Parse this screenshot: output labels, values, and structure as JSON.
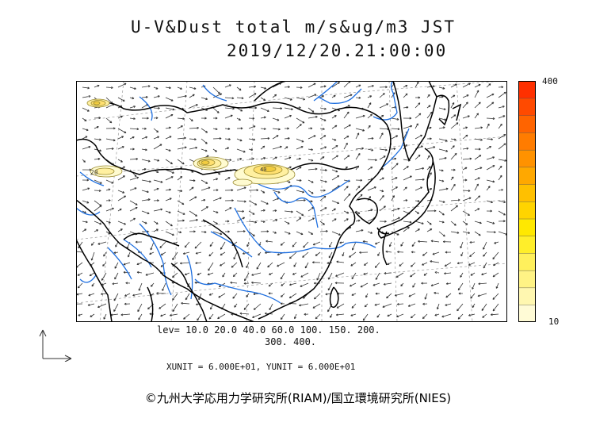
{
  "header": {
    "title": "U-V&Dust total m/s&ug/m3 JST",
    "datetime": "2019/12/20.21:00:00"
  },
  "colorbar": {
    "max_label": "400",
    "min_label": "10",
    "colors": [
      "#fffbd6",
      "#fff7b0",
      "#fff385",
      "#fff05c",
      "#ffee2a",
      "#ffe800",
      "#ffd400",
      "#ffc000",
      "#ffa800",
      "#ff9200",
      "#ff7c00",
      "#ff6400",
      "#ff4a00",
      "#ff3000"
    ]
  },
  "legend": {
    "levels_line1": "lev= 10.0 20.0 40.0 60.0 100. 150. 200.",
    "levels_line2": "300. 400.",
    "units_line": "XUNIT = 6.000E+01, YUNIT = 6.000E+01"
  },
  "map": {
    "coastline_color": "#000000",
    "river_color": "#1e6fe0",
    "dust_colors": [
      "#fffbd0",
      "#fff0a0",
      "#ffe070",
      "#f2cc40"
    ],
    "contour_labels": [
      "20",
      "40"
    ]
  },
  "footer": {
    "copyright": "©九州大学応用力学研究所(RIAM)/国立環境研究所(NIES)"
  }
}
